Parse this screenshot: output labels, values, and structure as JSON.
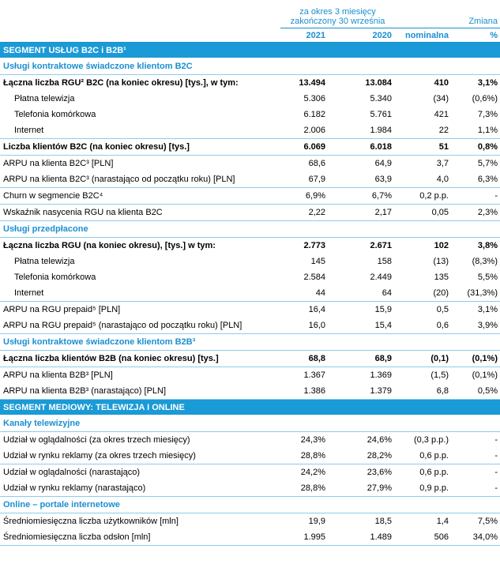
{
  "header": {
    "period": [
      "za okres 3 miesięcy",
      "zakończony 30 września"
    ],
    "change": "Zmiana",
    "columns": [
      "2021",
      "2020",
      "nominalna",
      "%"
    ]
  },
  "sections": [
    {
      "title": "SEGMENT USŁUG B2C i B2B¹",
      "groups": [
        {
          "title": "Usługi kontraktowe świadczone klientom B2C",
          "rows": [
            [
              "Łączna liczba RGU² B2C (na koniec okresu) [tys.], w tym:",
              "13.494",
              "13.084",
              "410",
              "3,1%"
            ],
            [
              "Płatna telewizja",
              "5.306",
              "5.340",
              "(34)",
              "(0,6%)"
            ],
            [
              "Telefonia komórkowa",
              "6.182",
              "5.761",
              "421",
              "7,3%"
            ],
            [
              "Internet",
              "2.006",
              "1.984",
              "22",
              "1,1%"
            ],
            [
              "Liczba klientów B2C (na koniec okresu) [tys.]",
              "6.069",
              "6.018",
              "51",
              "0,8%"
            ],
            [
              "ARPU na klienta B2C³ [PLN]",
              "68,6",
              "64,9",
              "3,7",
              "5,7%"
            ],
            [
              "ARPU na klienta B2C³ (narastająco od początku roku) [PLN]",
              "67,9",
              "63,9",
              "4,0",
              "6,3%"
            ],
            [
              "Churn w segmencie B2C⁴",
              "6,9%",
              "6,7%",
              "0,2 p.p.",
              "-"
            ],
            [
              "Wskaźnik nasycenia RGU na klienta B2C",
              "2,22",
              "2,17",
              "0,05",
              "2,3%"
            ]
          ]
        },
        {
          "title": "Usługi przedpłacone",
          "rows": [
            [
              "Łączna liczba RGU (na koniec okresu), [tys.] w tym:",
              "2.773",
              "2.671",
              "102",
              "3,8%"
            ],
            [
              "Płatna telewizja",
              "145",
              "158",
              "(13)",
              "(8,3%)"
            ],
            [
              "Telefonia komórkowa",
              "2.584",
              "2.449",
              "135",
              "5,5%"
            ],
            [
              "Internet",
              "44",
              "64",
              "(20)",
              "(31,3%)"
            ],
            [
              "ARPU na RGU prepaid⁵ [PLN]",
              "16,4",
              "15,9",
              "0,5",
              "3,1%"
            ],
            [
              "ARPU na RGU prepaid⁵ (narastająco od początku roku) [PLN]",
              "16,0",
              "15,4",
              "0,6",
              "3,9%"
            ]
          ]
        },
        {
          "title": "Usługi kontraktowe świadczone klientom B2B³",
          "rows": [
            [
              "Łączna liczba klientów B2B (na koniec okresu) [tys.]",
              "68,8",
              "68,9",
              "(0,1)",
              "(0,1%)"
            ],
            [
              "ARPU na klienta B2B³ [PLN]",
              "1.367",
              "1.369",
              "(1,5)",
              "(0,1%)"
            ],
            [
              "ARPU na klienta B2B³ (narastająco) [PLN]",
              "1.386",
              "1.379",
              "6,8",
              "0,5%"
            ]
          ]
        }
      ]
    },
    {
      "title": "SEGMENT MEDIOWY: TELEWIZJA I ONLINE",
      "groups": [
        {
          "title": "Kanały telewizyjne",
          "rows": [
            [
              "Udział w oglądalności (za okres trzech miesięcy)",
              "24,3%",
              "24,6%",
              "(0,3 p.p.)",
              "-"
            ],
            [
              "Udział w rynku reklamy (za okres trzech miesięcy)",
              "28,8%",
              "28,2%",
              "0,6 p.p.",
              "-"
            ],
            [
              "Udział w oglądalności (narastająco)",
              "24,2%",
              "23,6%",
              "0,6 p.p.",
              "-"
            ],
            [
              "Udział w rynku reklamy (narastająco)",
              "28,8%",
              "27,9%",
              "0,9 p.p.",
              "-"
            ]
          ]
        },
        {
          "title": "Online – portale internetowe",
          "rows": [
            [
              "Średniomiesięczna liczba użytkowników [mln]",
              "19,9",
              "18,5",
              "1,4",
              "7,5%"
            ],
            [
              "Średniomiesięczna liczba odsłon [mln]",
              "1.995",
              "1.489",
              "506",
              "34,0%"
            ]
          ]
        }
      ]
    }
  ]
}
